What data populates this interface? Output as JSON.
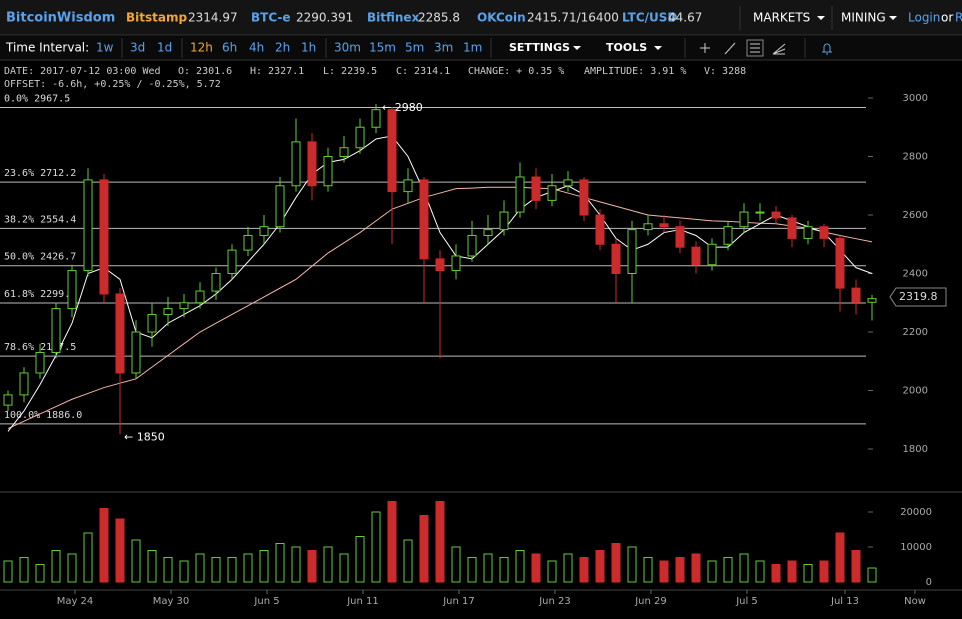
{
  "header": {
    "brand": "BitcoinWisdom",
    "tickers": [
      {
        "name": "Bitstamp",
        "price": "2314.97"
      },
      {
        "name": "BTC-e",
        "price": "2290.391"
      },
      {
        "name": "Bitfinex",
        "price": "2285.8"
      },
      {
        "name": "OKCoin",
        "price": "2415.71/16400"
      },
      {
        "name": "LTC/USD",
        "price": "44.67"
      }
    ],
    "menus": [
      "MARKETS",
      "MINING"
    ],
    "login": "Login",
    "or": "or",
    "register": "R"
  },
  "toolbar": {
    "label": "Time Interval:",
    "intervals": [
      "1w",
      "3d",
      "1d",
      "12h",
      "6h",
      "4h",
      "2h",
      "1h",
      "30m",
      "15m",
      "5m",
      "3m",
      "1m"
    ],
    "active": "12h",
    "settings": "SETTINGS",
    "tools": "TOOLS"
  },
  "info": {
    "line1": [
      "DATE: 2017-07-12 03:00 Wed",
      "O: 2301.6",
      "H: 2327.1",
      "L: 2239.5",
      "C: 2314.1",
      "CHANGE: + 0.35 %",
      "AMPLITUDE: 3.91 %",
      "V: 3288"
    ],
    "line2": "OFFSET: -6.6h, +0.25% / -0.25%, 5.72"
  },
  "chart": {
    "yticks": [
      1800,
      2000,
      2200,
      2400,
      2600,
      2800,
      3000
    ],
    "ylim": [
      1800,
      3000
    ],
    "volume_ticks": [
      0,
      10000,
      20000
    ],
    "fib_levels": [
      {
        "label": "0.0% 2967.5",
        "value": 2967.5
      },
      {
        "label": "23.6% 2712.2",
        "value": 2712.2
      },
      {
        "label": "38.2% 2554.4",
        "value": 2554.4
      },
      {
        "label": "50.0% 2426.7",
        "value": 2426.7
      },
      {
        "label": "61.8% 2299.1",
        "value": 2299.1
      },
      {
        "label": "78.6% 2117.5",
        "value": 2117.5
      },
      {
        "label": "100.0% 1886.0",
        "value": 1886.0
      }
    ],
    "high_note": {
      "label": "← 2980",
      "value": 2980
    },
    "low_note": {
      "label": "← 1850",
      "value": 1850
    },
    "current_price": {
      "label": "2319.8",
      "value": 2319.8
    },
    "x_labels": [
      "May 24",
      "May 30",
      "Jun 5",
      "Jun 11",
      "Jun 17",
      "Jun 23",
      "Jun 29",
      "Jul 5",
      "Jul 13",
      "Now"
    ],
    "candles": [
      [
        1950,
        2000,
        1930,
        1985
      ],
      [
        1985,
        2080,
        1960,
        2060
      ],
      [
        2060,
        2160,
        2040,
        2130
      ],
      [
        2130,
        2300,
        2110,
        2280
      ],
      [
        2280,
        2430,
        2250,
        2410
      ],
      [
        2410,
        2760,
        2390,
        2720
      ],
      [
        2720,
        2740,
        2300,
        2330
      ],
      [
        2330,
        2350,
        1850,
        2060
      ],
      [
        2060,
        2240,
        2040,
        2200
      ],
      [
        2200,
        2300,
        2150,
        2260
      ],
      [
        2260,
        2320,
        2220,
        2280
      ],
      [
        2280,
        2330,
        2250,
        2300
      ],
      [
        2300,
        2370,
        2280,
        2340
      ],
      [
        2340,
        2420,
        2310,
        2400
      ],
      [
        2400,
        2500,
        2380,
        2480
      ],
      [
        2480,
        2560,
        2460,
        2530
      ],
      [
        2530,
        2600,
        2500,
        2560
      ],
      [
        2560,
        2730,
        2540,
        2700
      ],
      [
        2700,
        2930,
        2680,
        2850
      ],
      [
        2850,
        2880,
        2650,
        2700
      ],
      [
        2700,
        2830,
        2680,
        2800
      ],
      [
        2800,
        2870,
        2780,
        2830
      ],
      [
        2830,
        2930,
        2810,
        2900
      ],
      [
        2900,
        2980,
        2880,
        2960
      ],
      [
        2960,
        2970,
        2500,
        2680
      ],
      [
        2680,
        2760,
        2640,
        2720
      ],
      [
        2720,
        2730,
        2300,
        2450
      ],
      [
        2450,
        2480,
        2110,
        2410
      ],
      [
        2410,
        2500,
        2380,
        2460
      ],
      [
        2460,
        2580,
        2440,
        2530
      ],
      [
        2530,
        2600,
        2500,
        2550
      ],
      [
        2550,
        2650,
        2530,
        2610
      ],
      [
        2610,
        2780,
        2590,
        2730
      ],
      [
        2730,
        2760,
        2620,
        2650
      ],
      [
        2650,
        2740,
        2630,
        2700
      ],
      [
        2700,
        2750,
        2680,
        2720
      ],
      [
        2720,
        2730,
        2580,
        2600
      ],
      [
        2600,
        2620,
        2480,
        2500
      ],
      [
        2500,
        2520,
        2300,
        2400
      ],
      [
        2400,
        2580,
        2300,
        2550
      ],
      [
        2550,
        2600,
        2530,
        2570
      ],
      [
        2570,
        2600,
        2540,
        2560
      ],
      [
        2560,
        2580,
        2470,
        2490
      ],
      [
        2490,
        2510,
        2400,
        2430
      ],
      [
        2430,
        2520,
        2410,
        2500
      ],
      [
        2500,
        2580,
        2480,
        2560
      ],
      [
        2560,
        2640,
        2540,
        2610
      ],
      [
        2610,
        2640,
        2580,
        2610
      ],
      [
        2610,
        2630,
        2570,
        2590
      ],
      [
        2590,
        2600,
        2490,
        2520
      ],
      [
        2520,
        2580,
        2500,
        2560
      ],
      [
        2560,
        2570,
        2490,
        2520
      ],
      [
        2520,
        2530,
        2270,
        2350
      ],
      [
        2350,
        2380,
        2260,
        2301.6
      ],
      [
        2301.6,
        2327.1,
        2239.5,
        2314.1
      ]
    ],
    "volumes": [
      6000,
      7000,
      5000,
      9000,
      8000,
      14000,
      21000,
      18000,
      12000,
      9000,
      7000,
      6000,
      8000,
      7000,
      7000,
      8000,
      9000,
      11000,
      10000,
      9000,
      10000,
      8000,
      13000,
      20000,
      23000,
      12000,
      19000,
      23000,
      10000,
      7000,
      8000,
      7000,
      9000,
      8000,
      6000,
      8000,
      7000,
      9000,
      11000,
      10000,
      7000,
      6000,
      7000,
      8000,
      6000,
      7000,
      8000,
      6000,
      5000,
      6000,
      5000,
      6000,
      14000,
      9000,
      4000
    ],
    "ma_short": [
      1860,
      1930,
      2020,
      2120,
      2230,
      2400,
      2420,
      2380,
      2200,
      2180,
      2230,
      2260,
      2290,
      2330,
      2380,
      2440,
      2500,
      2570,
      2660,
      2740,
      2780,
      2790,
      2820,
      2860,
      2870,
      2800,
      2680,
      2540,
      2460,
      2450,
      2500,
      2550,
      2620,
      2660,
      2680,
      2700,
      2670,
      2600,
      2520,
      2480,
      2500,
      2540,
      2550,
      2530,
      2490,
      2490,
      2540,
      2570,
      2600,
      2580,
      2560,
      2540,
      2480,
      2420,
      2400
    ],
    "ma_long": [
      1870,
      1895,
      1920,
      1945,
      1970,
      1990,
      2010,
      2025,
      2040,
      2080,
      2120,
      2160,
      2200,
      2230,
      2260,
      2290,
      2320,
      2350,
      2380,
      2425,
      2470,
      2505,
      2540,
      2580,
      2620,
      2640,
      2660,
      2675,
      2690,
      2692,
      2695,
      2695,
      2695,
      2692,
      2690,
      2675,
      2660,
      2645,
      2630,
      2615,
      2600,
      2595,
      2590,
      2585,
      2580,
      2578,
      2575,
      2572,
      2570,
      2562,
      2555,
      2542,
      2530,
      2519,
      2508
    ],
    "up_color": "#66cc33",
    "down_color": "#cc2b2b",
    "ma_short_color": "#ffffff",
    "ma_long_color": "#f4b6a6"
  }
}
